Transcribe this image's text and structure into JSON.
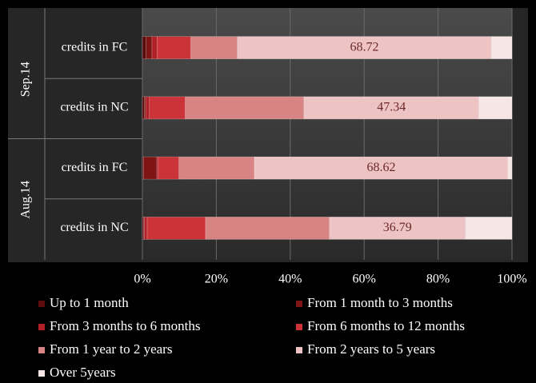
{
  "chart_data": {
    "type": "stacked-bar-horizontal-percent",
    "categories": [
      "credits in FC",
      "credits in NC",
      "credits in FC",
      "credits in NC"
    ],
    "group_labels": [
      "Sep.14",
      "Aug.14"
    ],
    "xlim": [
      0,
      100
    ],
    "xticks": [
      {
        "value": 0,
        "label": "0%"
      },
      {
        "value": 20,
        "label": "20%"
      },
      {
        "value": 40,
        "label": "40%"
      },
      {
        "value": 60,
        "label": "60%"
      },
      {
        "value": 80,
        "label": "80%"
      },
      {
        "value": 100,
        "label": "100%"
      }
    ],
    "grid": true,
    "series": [
      {
        "name": "Up to 1 month",
        "color": "#5c0c0c",
        "values": [
          1.0,
          0.5,
          0.3,
          0.3
        ]
      },
      {
        "name": "From 1 month to 3 months",
        "color": "#7e1414",
        "values": [
          1.6,
          0.4,
          3.6,
          0.2
        ]
      },
      {
        "name": "From 3 months to 6 months",
        "color": "#b02026",
        "values": [
          1.4,
          1.0,
          0.4,
          0.8
        ]
      },
      {
        "name": "From 6 months to 12 months",
        "color": "#cc3338",
        "values": [
          9.1,
          9.7,
          5.6,
          15.8
        ]
      },
      {
        "name": "From 1 year to 2 years",
        "color": "#d98484",
        "values": [
          12.6,
          32.1,
          20.4,
          33.5
        ]
      },
      {
        "name": "From 2 years to 5 years",
        "color": "#eec3c3",
        "values": [
          68.72,
          47.34,
          68.62,
          36.79
        ],
        "show_values": true
      },
      {
        "name": "Over 5years",
        "color": "#f6e6e6",
        "values": [
          5.58,
          8.96,
          1.08,
          12.61
        ]
      }
    ]
  }
}
